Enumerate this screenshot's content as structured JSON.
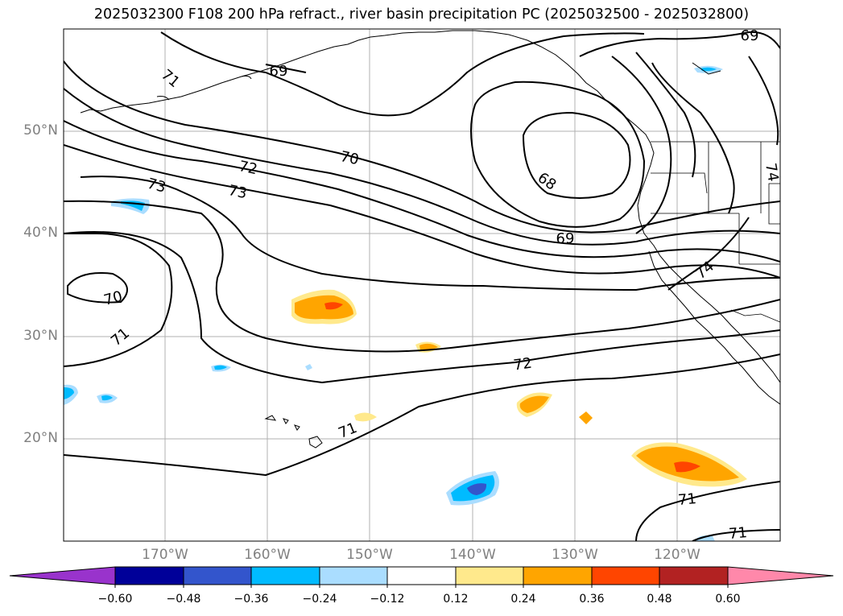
{
  "title": "2025032300 F108 200 hPa refract., river basin precipitation PC (2025032500 - 2025032800)",
  "map": {
    "lat_ticks": [
      "50°N",
      "40°N",
      "30°N",
      "20°N"
    ],
    "lon_ticks": [
      "170°W",
      "160°W",
      "150°W",
      "140°W",
      "130°W",
      "120°W"
    ],
    "contour_labels": [
      "69",
      "69",
      "71",
      "68",
      "70",
      "72",
      "73",
      "73",
      "74",
      "69",
      "74",
      "70",
      "71",
      "72",
      "71",
      "71",
      "71"
    ],
    "contour_color": "#000000"
  },
  "colorbar": {
    "ticks": [
      "−0.60",
      "−0.48",
      "−0.36",
      "−0.24",
      "−0.12",
      "0.12",
      "0.24",
      "0.36",
      "0.48",
      "0.60"
    ],
    "colors": [
      "#9933cc",
      "#000099",
      "#3355cc",
      "#00bbff",
      "#aaddff",
      "#ffffff",
      "#ffe98c",
      "#ffa500",
      "#ff4500",
      "#b22222",
      "#ff88aa"
    ]
  }
}
